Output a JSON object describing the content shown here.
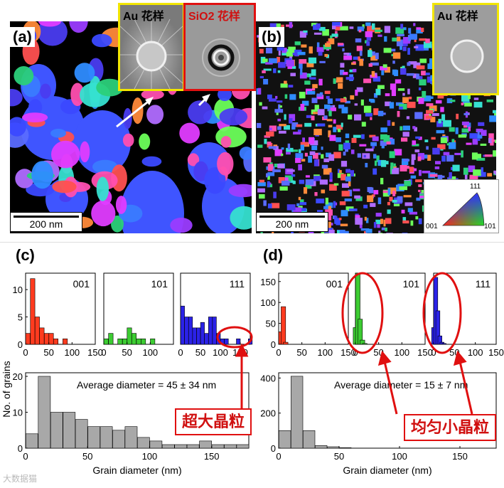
{
  "panels": {
    "a": {
      "label": "(a)",
      "scale_bar": "200 nm",
      "inset_au": "Au 花样",
      "inset_sio2": "SiO2 花样"
    },
    "b": {
      "label": "(b)",
      "scale_bar": "200 nm",
      "inset_au": "Au 花样"
    },
    "c": {
      "label": "(c)",
      "average": "Average diameter = 45 ± 34 nm",
      "callout": "超大晶粒"
    },
    "d": {
      "label": "(d)",
      "average": "Average diameter = 15 ± 7 nm",
      "callout": "均匀小晶粒"
    }
  },
  "ipf_key": {
    "top": "111",
    "left": "001",
    "right": "101"
  },
  "watermark": "大数据猫",
  "chart_data": [
    {
      "panel": "c",
      "name": "001",
      "type": "bar",
      "x": [
        10,
        20,
        30,
        40,
        50,
        60,
        70,
        80,
        90
      ],
      "values": [
        2,
        12,
        5,
        3,
        2,
        2,
        1,
        0,
        1
      ],
      "xticks": [
        0,
        50,
        100,
        150
      ],
      "xlim": [
        0,
        150
      ],
      "ylim": [
        0,
        13
      ],
      "yticks": [
        0,
        5,
        10
      ],
      "ylabel": "",
      "color": "#ff3b1f"
    },
    {
      "panel": "c",
      "name": "101",
      "type": "bar",
      "x": [
        10,
        20,
        30,
        40,
        50,
        60,
        70,
        80,
        90,
        100,
        110
      ],
      "values": [
        1,
        2,
        0,
        1,
        1,
        3,
        2,
        1,
        1,
        0,
        1
      ],
      "xticks": [
        0,
        50,
        100
      ],
      "xlim": [
        0,
        150
      ],
      "ylim": [
        0,
        13
      ],
      "color": "#3ccc32"
    },
    {
      "panel": "c",
      "name": "111",
      "type": "bar",
      "x": [
        10,
        20,
        30,
        40,
        50,
        60,
        70,
        80,
        90,
        100,
        110,
        120,
        130,
        140,
        150,
        160,
        170,
        180
      ],
      "values": [
        7,
        5,
        5,
        3,
        3,
        4,
        2,
        5,
        5,
        2,
        1,
        1,
        0,
        0,
        1,
        0,
        0,
        1
      ],
      "xticks": [
        0,
        50,
        100,
        150
      ],
      "xlim": [
        0,
        175
      ],
      "ylim": [
        0,
        13
      ],
      "color": "#2b22e8"
    },
    {
      "panel": "c",
      "name": "all",
      "type": "bar",
      "x": [
        10,
        20,
        30,
        40,
        50,
        60,
        70,
        80,
        90,
        100,
        110,
        120,
        130,
        140,
        150,
        160,
        170,
        180
      ],
      "values": [
        4,
        20,
        10,
        10,
        8,
        6,
        6,
        5,
        6,
        3,
        2,
        1,
        1,
        1,
        2,
        1,
        1,
        1
      ],
      "xticks": [
        0,
        50,
        100,
        150
      ],
      "yticks": [
        0,
        10,
        20
      ],
      "xlim": [
        0,
        180
      ],
      "ylim": [
        0,
        21
      ],
      "xlabel": "Grain diameter (nm)",
      "ylabel": "No. of grains",
      "color": "#a8a8a8"
    },
    {
      "panel": "d",
      "name": "001",
      "type": "bar",
      "x": [
        5,
        10,
        15,
        20,
        25
      ],
      "values": [
        0,
        30,
        90,
        5,
        0
      ],
      "xticks": [
        0,
        50,
        100,
        150
      ],
      "xlim": [
        0,
        150
      ],
      "ylim": [
        0,
        170
      ],
      "yticks": [
        0,
        50,
        100,
        150
      ],
      "color": "#ff3b1f"
    },
    {
      "panel": "d",
      "name": "101",
      "type": "bar",
      "x": [
        5,
        10,
        15,
        20,
        25
      ],
      "values": [
        40,
        170,
        60,
        10,
        2
      ],
      "xticks": [
        0,
        50,
        100,
        150
      ],
      "xlim": [
        0,
        150
      ],
      "ylim": [
        0,
        170
      ],
      "color": "#3ccc32"
    },
    {
      "panel": "d",
      "name": "111",
      "type": "bar",
      "x": [
        5,
        10,
        15,
        20,
        25,
        30
      ],
      "values": [
        40,
        160,
        80,
        20,
        5,
        2
      ],
      "xticks": [
        0,
        50,
        100,
        150
      ],
      "xlim": [
        0,
        150
      ],
      "ylim": [
        0,
        170
      ],
      "color": "#2b22e8"
    },
    {
      "panel": "d",
      "name": "all",
      "type": "bar",
      "x": [
        10,
        20,
        30,
        40,
        50,
        60
      ],
      "values": [
        100,
        410,
        100,
        15,
        8,
        3
      ],
      "xticks": [
        0,
        50,
        100,
        150
      ],
      "yticks": [
        0,
        200,
        400
      ],
      "xlim": [
        0,
        180
      ],
      "ylim": [
        0,
        430
      ],
      "xlabel": "Grain diameter (nm)",
      "ylabel": "",
      "color": "#a8a8a8"
    }
  ]
}
